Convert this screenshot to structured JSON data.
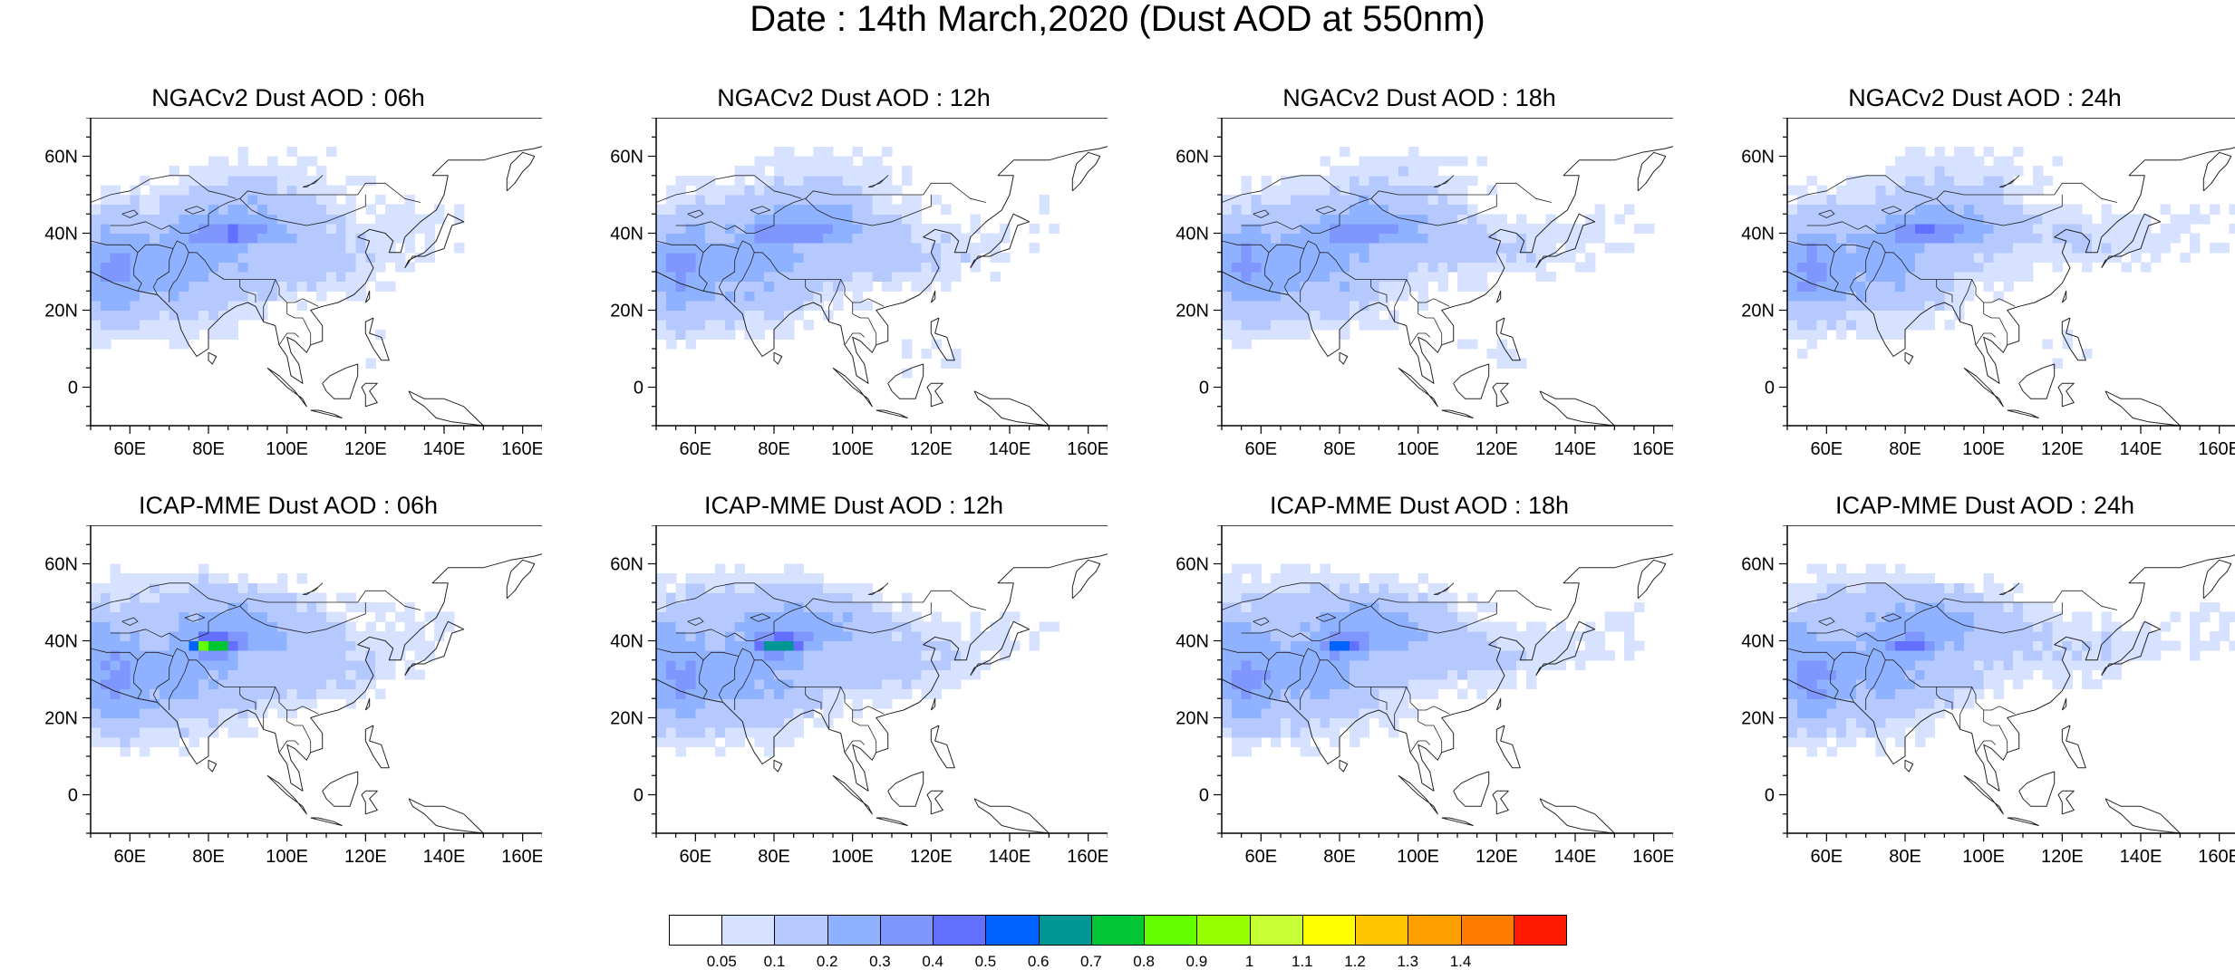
{
  "title": "Date : 14th March,2020 (Dust AOD at 550nm)",
  "extent": {
    "lon": [
      50,
      170
    ],
    "lat": [
      -10,
      70
    ]
  },
  "lon_ticks": [
    60,
    80,
    100,
    120,
    140,
    160
  ],
  "lon_tick_labels": [
    "60E",
    "80E",
    "100E",
    "120E",
    "140E",
    "160E"
  ],
  "lat_ticks": [
    0,
    20,
    40,
    60
  ],
  "lat_tick_labels": [
    "0",
    "20N",
    "40N",
    "60N"
  ],
  "panels": [
    {
      "title": "NGACv2 Dust AOD : 06h",
      "model": "ngac",
      "hour": 6
    },
    {
      "title": "NGACv2 Dust AOD : 12h",
      "model": "ngac",
      "hour": 12
    },
    {
      "title": "NGACv2 Dust AOD : 18h",
      "model": "ngac",
      "hour": 18
    },
    {
      "title": "NGACv2 Dust AOD : 24h",
      "model": "ngac",
      "hour": 24
    },
    {
      "title": "ICAP-MME Dust AOD : 06h",
      "model": "icap",
      "hour": 6
    },
    {
      "title": "ICAP-MME Dust AOD : 12h",
      "model": "icap",
      "hour": 12
    },
    {
      "title": "ICAP-MME Dust AOD : 18h",
      "model": "icap",
      "hour": 18
    },
    {
      "title": "ICAP-MME Dust AOD : 24h",
      "model": "icap",
      "hour": 24
    }
  ],
  "colorbar": {
    "labels": [
      "0.05",
      "0.1",
      "0.2",
      "0.3",
      "0.4",
      "0.5",
      "0.6",
      "0.7",
      "0.8",
      "0.9",
      "1",
      "1.1",
      "1.2",
      "1.3",
      "1.4"
    ],
    "colors": [
      "#ffffff",
      "#d6e2ff",
      "#b5c9ff",
      "#8eb2ff",
      "#7f96ff",
      "#6370ff",
      "#0063ff",
      "#009696",
      "#00c633",
      "#63ff00",
      "#96ff00",
      "#c6ff33",
      "#ffff00",
      "#ffc600",
      "#ffa000",
      "#ff7c00",
      "#ff1900"
    ]
  }
}
